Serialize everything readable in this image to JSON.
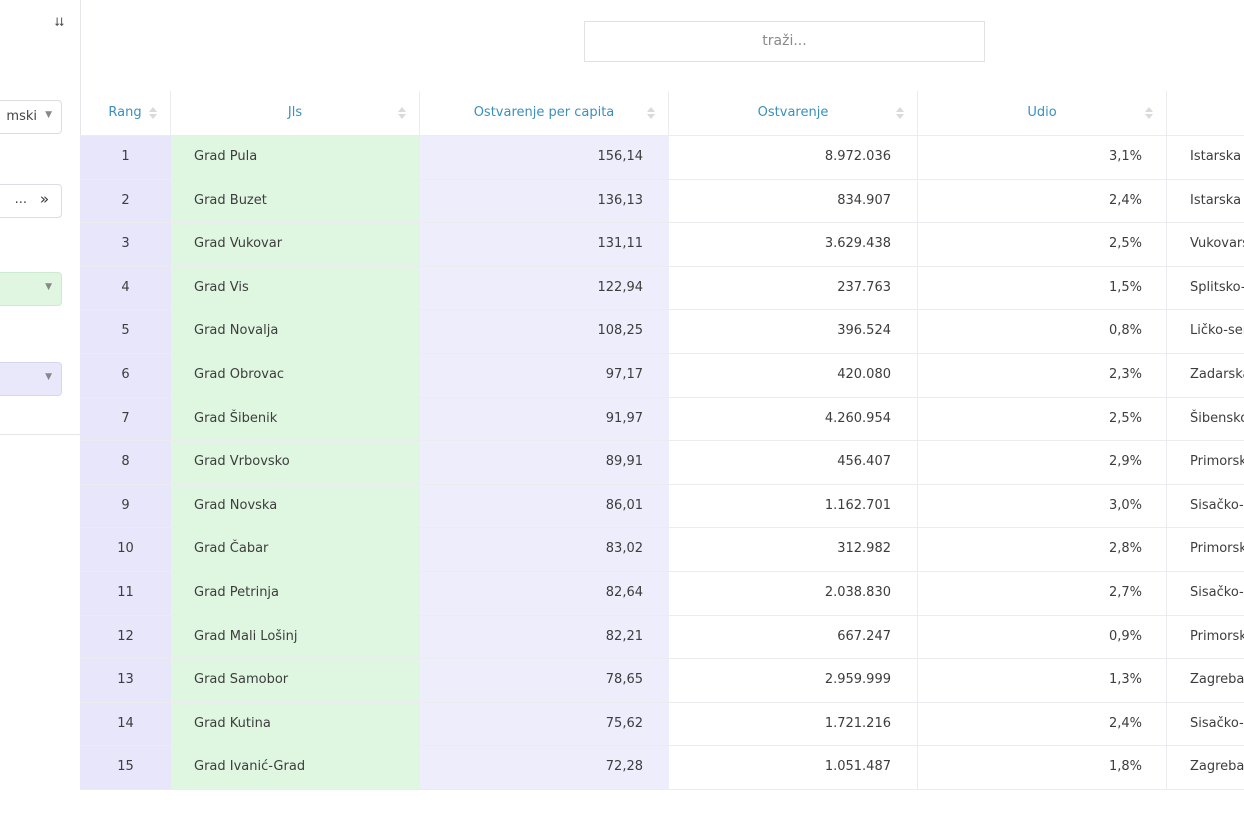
{
  "sidebar": {
    "collapse_icon": "double-chevron-down-icon",
    "type_select_value": "mski",
    "periods_value": "...",
    "periods_icon": "double-chevron-right-icon"
  },
  "search": {
    "placeholder": "traži..."
  },
  "table": {
    "columns": [
      "Rang",
      "Jls",
      "Ostvarenje per capita",
      "Ostvarenje",
      "Udio",
      ""
    ],
    "rows": [
      {
        "rang": "1",
        "jls": "Grad Pula",
        "per_capita": "156,14",
        "ostvarenje": "8.972.036",
        "udio": "3,1%",
        "zupanija": "Istarska ž"
      },
      {
        "rang": "2",
        "jls": "Grad Buzet",
        "per_capita": "136,13",
        "ostvarenje": "834.907",
        "udio": "2,4%",
        "zupanija": "Istarska ž"
      },
      {
        "rang": "3",
        "jls": "Grad Vukovar",
        "per_capita": "131,11",
        "ostvarenje": "3.629.438",
        "udio": "2,5%",
        "zupanija": "Vukovars"
      },
      {
        "rang": "4",
        "jls": "Grad Vis",
        "per_capita": "122,94",
        "ostvarenje": "237.763",
        "udio": "1,5%",
        "zupanija": "Splitsko-"
      },
      {
        "rang": "5",
        "jls": "Grad Novalja",
        "per_capita": "108,25",
        "ostvarenje": "396.524",
        "udio": "0,8%",
        "zupanija": "Ličko-sen"
      },
      {
        "rang": "6",
        "jls": "Grad Obrovac",
        "per_capita": "97,17",
        "ostvarenje": "420.080",
        "udio": "2,3%",
        "zupanija": "Zadarska"
      },
      {
        "rang": "7",
        "jls": "Grad Šibenik",
        "per_capita": "91,97",
        "ostvarenje": "4.260.954",
        "udio": "2,5%",
        "zupanija": "Šibensko"
      },
      {
        "rang": "8",
        "jls": "Grad Vrbovsko",
        "per_capita": "89,91",
        "ostvarenje": "456.407",
        "udio": "2,9%",
        "zupanija": "Primorsk"
      },
      {
        "rang": "9",
        "jls": "Grad Novska",
        "per_capita": "86,01",
        "ostvarenje": "1.162.701",
        "udio": "3,0%",
        "zupanija": "Sisačko-"
      },
      {
        "rang": "10",
        "jls": "Grad Čabar",
        "per_capita": "83,02",
        "ostvarenje": "312.982",
        "udio": "2,8%",
        "zupanija": "Primorsk"
      },
      {
        "rang": "11",
        "jls": "Grad Petrinja",
        "per_capita": "82,64",
        "ostvarenje": "2.038.830",
        "udio": "2,7%",
        "zupanija": "Sisačko-"
      },
      {
        "rang": "12",
        "jls": "Grad Mali Lošinj",
        "per_capita": "82,21",
        "ostvarenje": "667.247",
        "udio": "0,9%",
        "zupanija": "Primorsk"
      },
      {
        "rang": "13",
        "jls": "Grad Samobor",
        "per_capita": "78,65",
        "ostvarenje": "2.959.999",
        "udio": "1,3%",
        "zupanija": "Zagrebač"
      },
      {
        "rang": "14",
        "jls": "Grad Kutina",
        "per_capita": "75,62",
        "ostvarenje": "1.721.216",
        "udio": "2,4%",
        "zupanija": "Sisačko-"
      },
      {
        "rang": "15",
        "jls": "Grad Ivanić-Grad",
        "per_capita": "72,28",
        "ostvarenje": "1.051.487",
        "udio": "1,8%",
        "zupanija": "Zagrebač"
      }
    ]
  },
  "colors": {
    "rang_bg": "#e7e6fb",
    "jls_bg": "#dff6e1",
    "per_capita_bg": "#eeedfb",
    "header_text": "#3b8fbf"
  }
}
